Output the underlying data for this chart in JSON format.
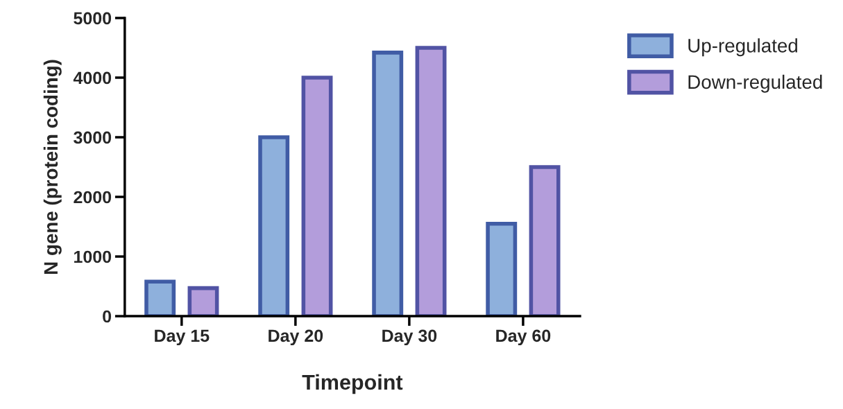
{
  "chart_data": {
    "type": "bar",
    "xlabel": "Timepoint",
    "ylabel": "N gene (protein coding)",
    "categories": [
      "Day 15",
      "Day 20",
      "Day 30",
      "Day 60"
    ],
    "series": [
      {
        "name": "Up-regulated",
        "color": "#8eb0dc",
        "values": [
          580,
          3000,
          4420,
          1550
        ]
      },
      {
        "name": "Down-regulated",
        "color": "#b39ddb",
        "values": [
          470,
          4000,
          4500,
          2500
        ]
      }
    ],
    "ylim": [
      0,
      5000
    ],
    "yticks": [
      0,
      1000,
      2000,
      3000,
      4000,
      5000
    ],
    "grid": false,
    "legend": "top right"
  }
}
